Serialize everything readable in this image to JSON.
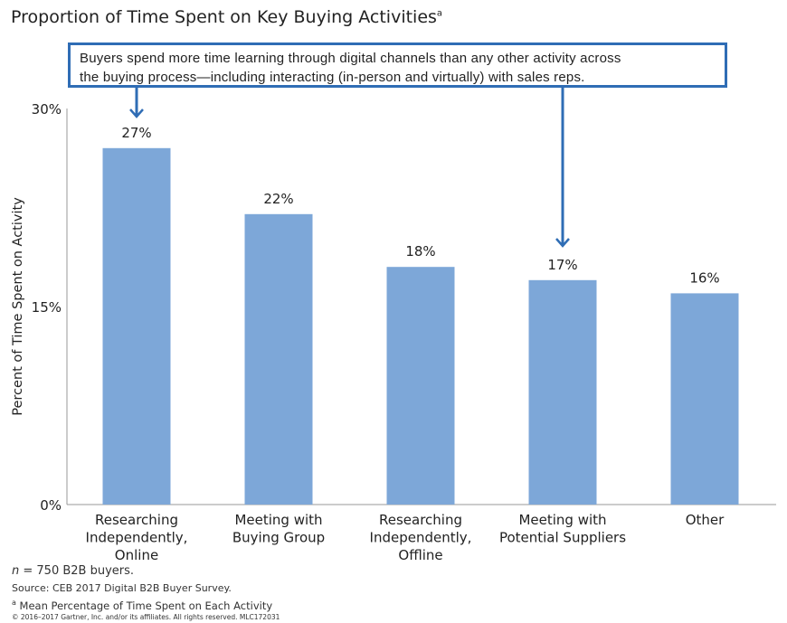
{
  "chart_data": {
    "type": "bar",
    "title": "Proportion of Time Spent on Key Buying Activities",
    "title_footnote_mark": "a",
    "ylabel": "Percent of Time Spent on Activity",
    "xlabel": "",
    "ylim": [
      0,
      30
    ],
    "yticks": [
      "0%",
      "15%",
      "30%"
    ],
    "categories": [
      [
        "Researching",
        "Independently,",
        "Online"
      ],
      [
        "Meeting with",
        "Buying Group"
      ],
      [
        "Researching",
        "Independently,",
        "Offline"
      ],
      [
        "Meeting with",
        "Potential Suppliers"
      ],
      [
        "Other"
      ]
    ],
    "values": [
      27,
      22,
      18,
      17,
      16
    ],
    "data_labels": [
      "27%",
      "22%",
      "18%",
      "17%",
      "16%"
    ],
    "bar_color": "#7da7d8",
    "grid": false,
    "annotation": {
      "text_line1": "Buyers spend more time learning through digital channels than any other activity across",
      "text_line2": "the buying process—including interacting (in-person and virtually) with sales reps.",
      "color": "#2f6db5",
      "points_to": [
        "Researching Independently, Online",
        "Meeting with Potential Suppliers"
      ]
    }
  },
  "footer": {
    "n_italic": "n",
    "n_text": " = 750 B2B buyers.",
    "source": "Source: CEB 2017 Digital B2B Buyer Survey.",
    "footnote_mark": "a",
    "footnote": " Mean Percentage of Time Spent on Each Activity",
    "copyright": "© 2016–2017 Gartner, Inc. and/or its affiliates. All rights reserved. MLC172031"
  }
}
